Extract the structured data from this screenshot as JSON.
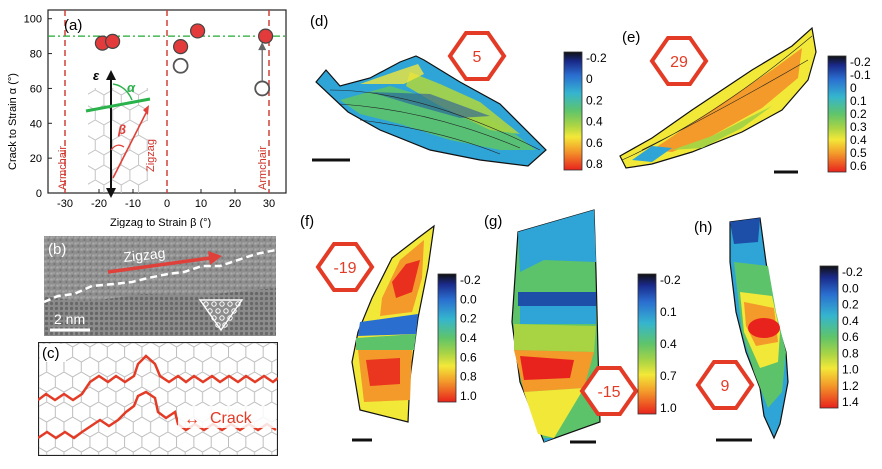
{
  "panel_a": {
    "label": "(a)",
    "ylabel": "Crack to Strain α (°)",
    "xlabel": "Zigzag to Strain β (°)",
    "yticks": [
      "0",
      "20",
      "40",
      "60",
      "80",
      "100"
    ],
    "xticks": [
      "-30",
      "-20",
      "-10",
      "0",
      "10",
      "20",
      "30"
    ],
    "region_labels": [
      "Armchair",
      "Zigzag",
      "Armchair"
    ],
    "inset_symbols": {
      "epsilon": "ε",
      "alpha": "α",
      "beta": "β"
    }
  },
  "chart_data": {
    "type": "scatter",
    "xlabel": "Zigzag to Strain β (°)",
    "ylabel": "Crack to Strain α (°)",
    "xlim": [
      -35,
      35
    ],
    "ylim": [
      0,
      105
    ],
    "reference_lines": {
      "vertical": [
        -30,
        0,
        30
      ],
      "horizontal": [
        90
      ]
    },
    "series": [
      {
        "marker": "filled-red",
        "points": [
          [
            -19,
            86
          ],
          [
            -16,
            87
          ],
          [
            4,
            84
          ],
          [
            9,
            93
          ],
          [
            29,
            90
          ]
        ]
      },
      {
        "marker": "open-gray",
        "points": [
          [
            4,
            73
          ],
          [
            28,
            60
          ]
        ]
      }
    ]
  },
  "panel_b": {
    "label": "(b)",
    "arrow_text": "Zigzag",
    "scale_text": "2 nm"
  },
  "panel_c": {
    "label": "(c)",
    "crack_text": "Crack",
    "crack_arrow": "↔"
  },
  "maps": [
    {
      "id": "d",
      "label": "(d)",
      "angle": "5",
      "colorbar": [
        "-0.2",
        "0",
        "0.2",
        "0.4",
        "0.6",
        "0.8"
      ]
    },
    {
      "id": "e",
      "label": "(e)",
      "angle": "29",
      "colorbar": [
        "-0.2",
        "-0.1",
        "0",
        "0.1",
        "0.2",
        "0.3",
        "0.4",
        "0.5",
        "0.6"
      ]
    },
    {
      "id": "f",
      "label": "(f)",
      "angle": "-19",
      "colorbar": [
        "-0.2",
        "0.0",
        "0.2",
        "0.4",
        "0.6",
        "0.8",
        "1.0"
      ]
    },
    {
      "id": "g",
      "label": "(g)",
      "angle": "-15",
      "colorbar": [
        "-0.2",
        "0.1",
        "0.4",
        "0.7",
        "1.0"
      ]
    },
    {
      "id": "h",
      "label": "(h)",
      "angle": "9",
      "colorbar": [
        "-0.2",
        "0.0",
        "0.2",
        "0.4",
        "0.6",
        "0.8",
        "1.0",
        "1.2",
        "1.4"
      ]
    }
  ],
  "colors": {
    "accent_red": "#e02020",
    "dash_red": "#d0342c",
    "dash_green": "#22aa33"
  }
}
